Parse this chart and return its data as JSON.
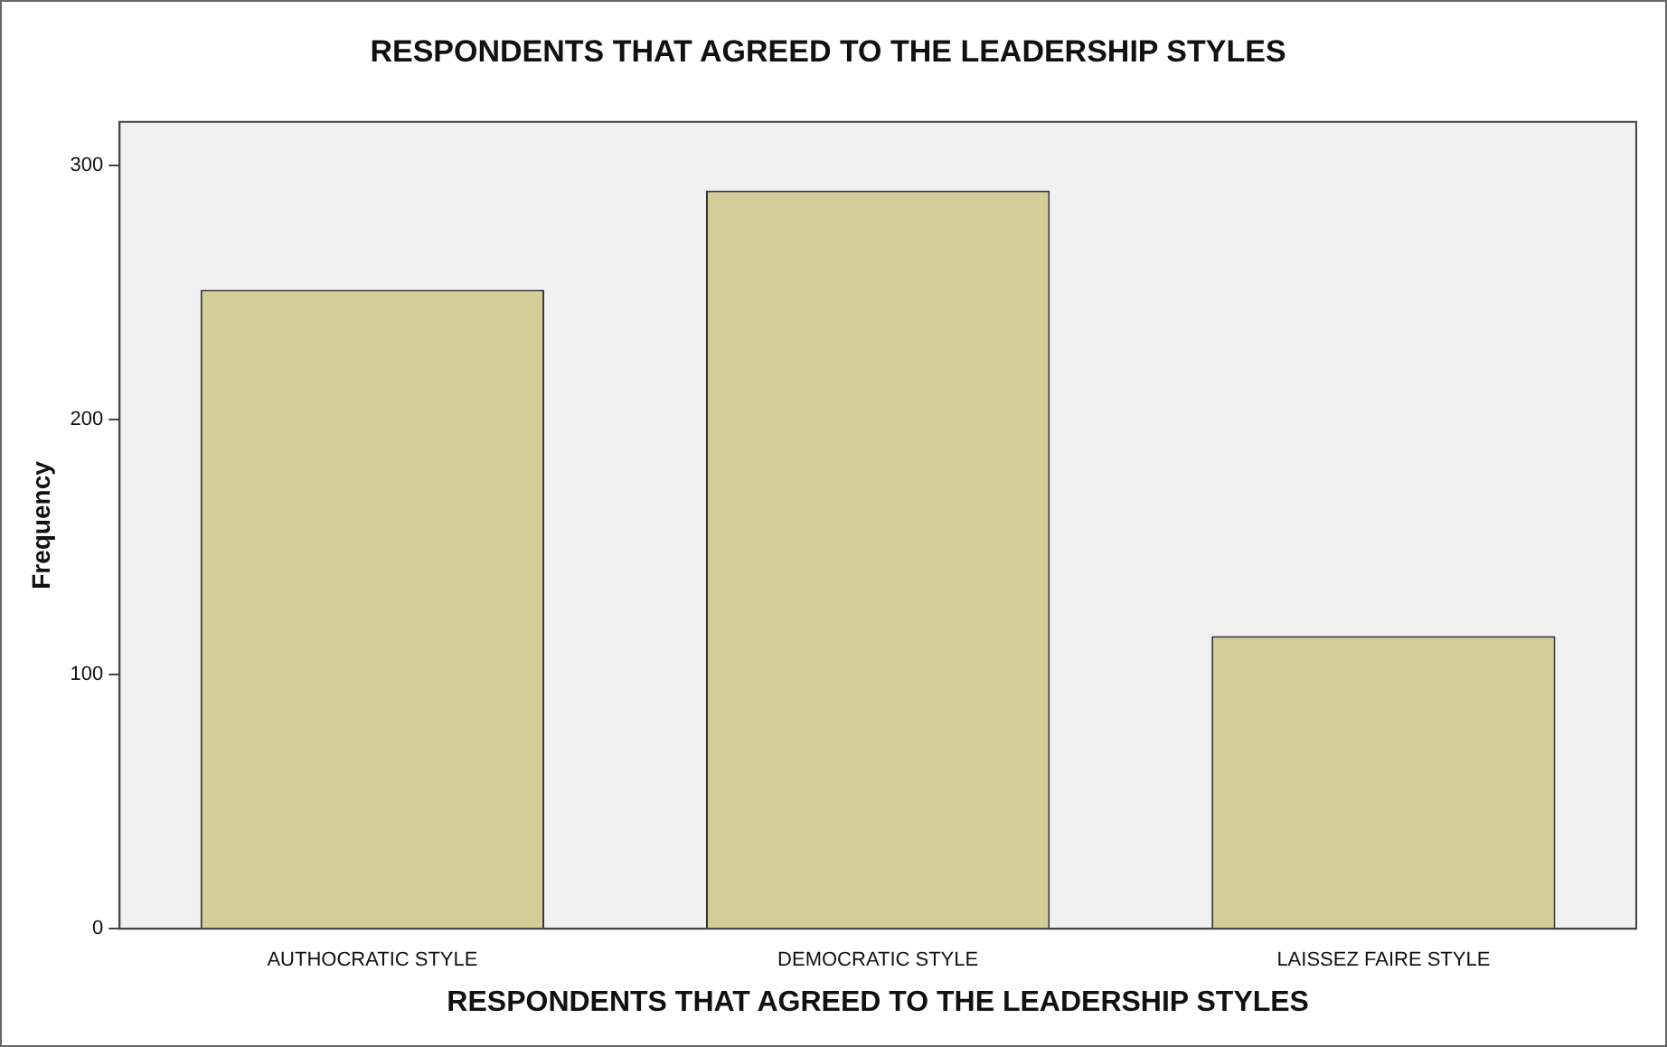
{
  "chart_data": {
    "type": "bar",
    "title": "RESPONDENTS THAT AGREED TO THE LEADERSHIP STYLES",
    "xlabel": "RESPONDENTS THAT AGREED TO THE LEADERSHIP STYLES",
    "ylabel": "Frequency",
    "categories": [
      "AUTHOCRATIC STYLE",
      "DEMOCRATIC STYLE",
      "LAISSEZ FAIRE STYLE"
    ],
    "values": [
      251,
      290,
      115
    ],
    "color": "#d3ce97",
    "ylim": [
      0,
      317
    ],
    "yticks": [
      0,
      100,
      200,
      300
    ],
    "grid": false,
    "legend": false
  }
}
